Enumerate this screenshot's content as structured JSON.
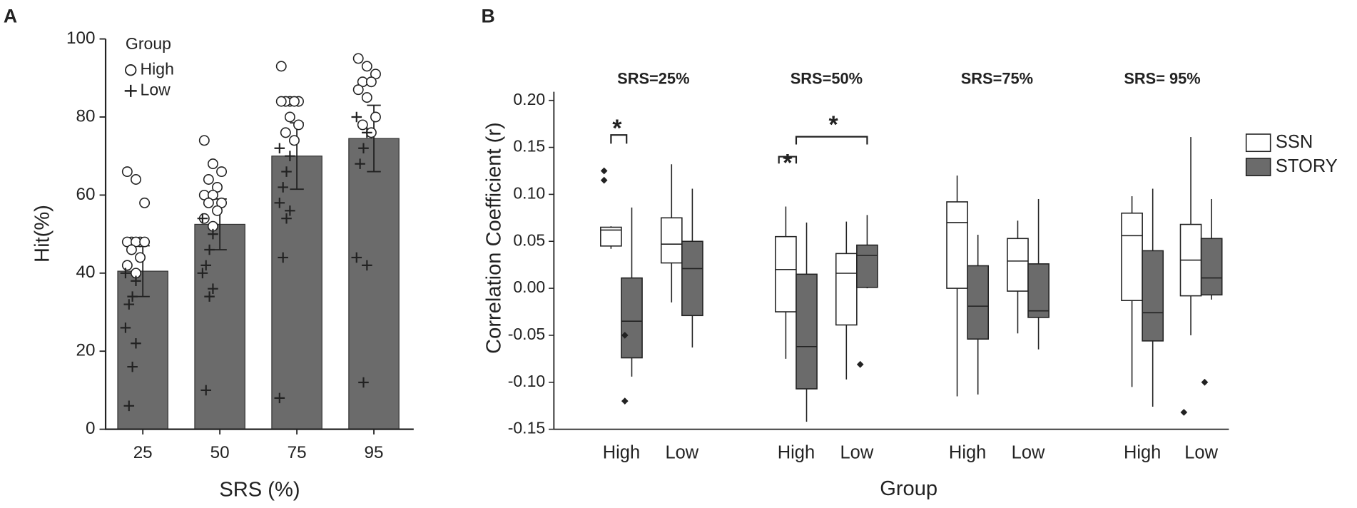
{
  "chart_data": [
    {
      "type": "bar",
      "panel_label": "A",
      "x_label": "SRS (%)",
      "y_label": "Hit(%)",
      "legend_title": "Group",
      "categories": [
        "25",
        "50",
        "75",
        "95"
      ],
      "values": [
        40.5,
        52.5,
        70,
        74.5
      ],
      "errors": [
        6.5,
        6.5,
        8.5,
        8.5
      ],
      "color": "#6b6b6b",
      "ylim": [
        0,
        100
      ],
      "yticks": [
        0,
        20,
        40,
        60,
        80,
        100
      ],
      "scatter": [
        {
          "name": "High",
          "marker": "circle",
          "values": [
            [
              66,
              64,
              58,
              48,
              48,
              48,
              48,
              48,
              46,
              44,
              42,
              40
            ],
            [
              74,
              68,
              66,
              64,
              62,
              60,
              60,
              58,
              58,
              56,
              54,
              52
            ],
            [
              93,
              84,
              84,
              84,
              84,
              84,
              80,
              78,
              76,
              74
            ],
            [
              95,
              93,
              91,
              89,
              89,
              87,
              85,
              80,
              78,
              76
            ]
          ]
        },
        {
          "name": "Low",
          "marker": "plus",
          "values": [
            [
              40,
              38,
              34,
              32,
              26,
              22,
              16,
              6
            ],
            [
              54,
              50,
              46,
              42,
              40,
              36,
              34,
              10
            ],
            [
              72,
              70,
              66,
              62,
              58,
              56,
              54,
              44,
              8
            ],
            [
              80,
              76,
              72,
              68,
              44,
              42,
              12
            ]
          ]
        }
      ]
    },
    {
      "type": "box",
      "panel_label": "B",
      "x_label": "Group",
      "y_label": "Correlation Coefficient (r)",
      "panel_titles": [
        "SRS=25%",
        "SRS=50%",
        "SRS=75%",
        "SRS= 95%"
      ],
      "categories": [
        "High",
        "Low",
        "High",
        "Low",
        "High",
        "Low",
        "High",
        "Low"
      ],
      "ylim": [
        -0.15,
        0.2
      ],
      "yticks": [
        -0.15,
        {
          "value": -0.1,
          "label": "-0.10"
        },
        -0.05,
        {
          "value": 0,
          "label": "0.00"
        },
        0.05,
        {
          "value": 0.1,
          "label": "0.10"
        },
        0.15,
        {
          "value": 0.2,
          "label": "0.20"
        }
      ],
      "annotations": [
        "*",
        "*",
        "*"
      ],
      "series": [
        {
          "name": "SSN",
          "color": "#ffffff",
          "boxes": [
            {
              "whislo": 0.042,
              "q1": 0.045,
              "med": 0.062,
              "q3": 0.065,
              "whishi": 0.066,
              "fliers": [
                0.125,
                0.115
              ]
            },
            {
              "whislo": -0.015,
              "q1": 0.027,
              "med": 0.047,
              "q3": 0.075,
              "whishi": 0.132,
              "fliers": []
            },
            {
              "whislo": -0.075,
              "q1": -0.025,
              "med": 0.02,
              "q3": 0.055,
              "whishi": 0.087,
              "fliers": []
            },
            {
              "whislo": -0.097,
              "q1": -0.039,
              "med": 0.016,
              "q3": 0.037,
              "whishi": 0.071,
              "fliers": []
            },
            {
              "whislo": -0.115,
              "q1": 0,
              "med": 0.07,
              "q3": 0.092,
              "whishi": 0.12,
              "fliers": []
            },
            {
              "whislo": -0.048,
              "q1": -0.003,
              "med": 0.029,
              "q3": 0.053,
              "whishi": 0.072,
              "fliers": []
            },
            {
              "whislo": -0.105,
              "q1": -0.013,
              "med": 0.056,
              "q3": 0.08,
              "whishi": 0.098,
              "fliers": []
            },
            {
              "whislo": -0.05,
              "q1": -0.008,
              "med": 0.03,
              "q3": 0.068,
              "whishi": 0.161,
              "fliers": [
                -0.132
              ]
            }
          ]
        },
        {
          "name": "STORY",
          "color": "#6b6b6b",
          "boxes": [
            {
              "whislo": -0.094,
              "q1": -0.074,
              "med": -0.035,
              "q3": 0.011,
              "whishi": 0.086,
              "fliers": [
                -0.05,
                -0.12
              ]
            },
            {
              "whislo": -0.063,
              "q1": -0.029,
              "med": 0.021,
              "q3": 0.05,
              "whishi": 0.106,
              "fliers": []
            },
            {
              "whislo": -0.142,
              "q1": -0.107,
              "med": -0.062,
              "q3": 0.015,
              "whishi": 0.07,
              "fliers": []
            },
            {
              "whislo": 0,
              "q1": 0.001,
              "med": 0.035,
              "q3": 0.046,
              "whishi": 0.078,
              "fliers": [
                -0.081
              ]
            },
            {
              "whislo": -0.113,
              "q1": -0.054,
              "med": -0.019,
              "q3": 0.024,
              "whishi": 0.057,
              "fliers": []
            },
            {
              "whislo": -0.065,
              "q1": -0.031,
              "med": -0.024,
              "q3": 0.026,
              "whishi": 0.095,
              "fliers": []
            },
            {
              "whislo": -0.126,
              "q1": -0.056,
              "med": -0.026,
              "q3": 0.04,
              "whishi": 0.106,
              "fliers": []
            },
            {
              "whislo": -0.012,
              "q1": -0.007,
              "med": 0.011,
              "q3": 0.053,
              "whishi": 0.095,
              "fliers": [
                -0.1
              ]
            }
          ]
        }
      ]
    }
  ]
}
